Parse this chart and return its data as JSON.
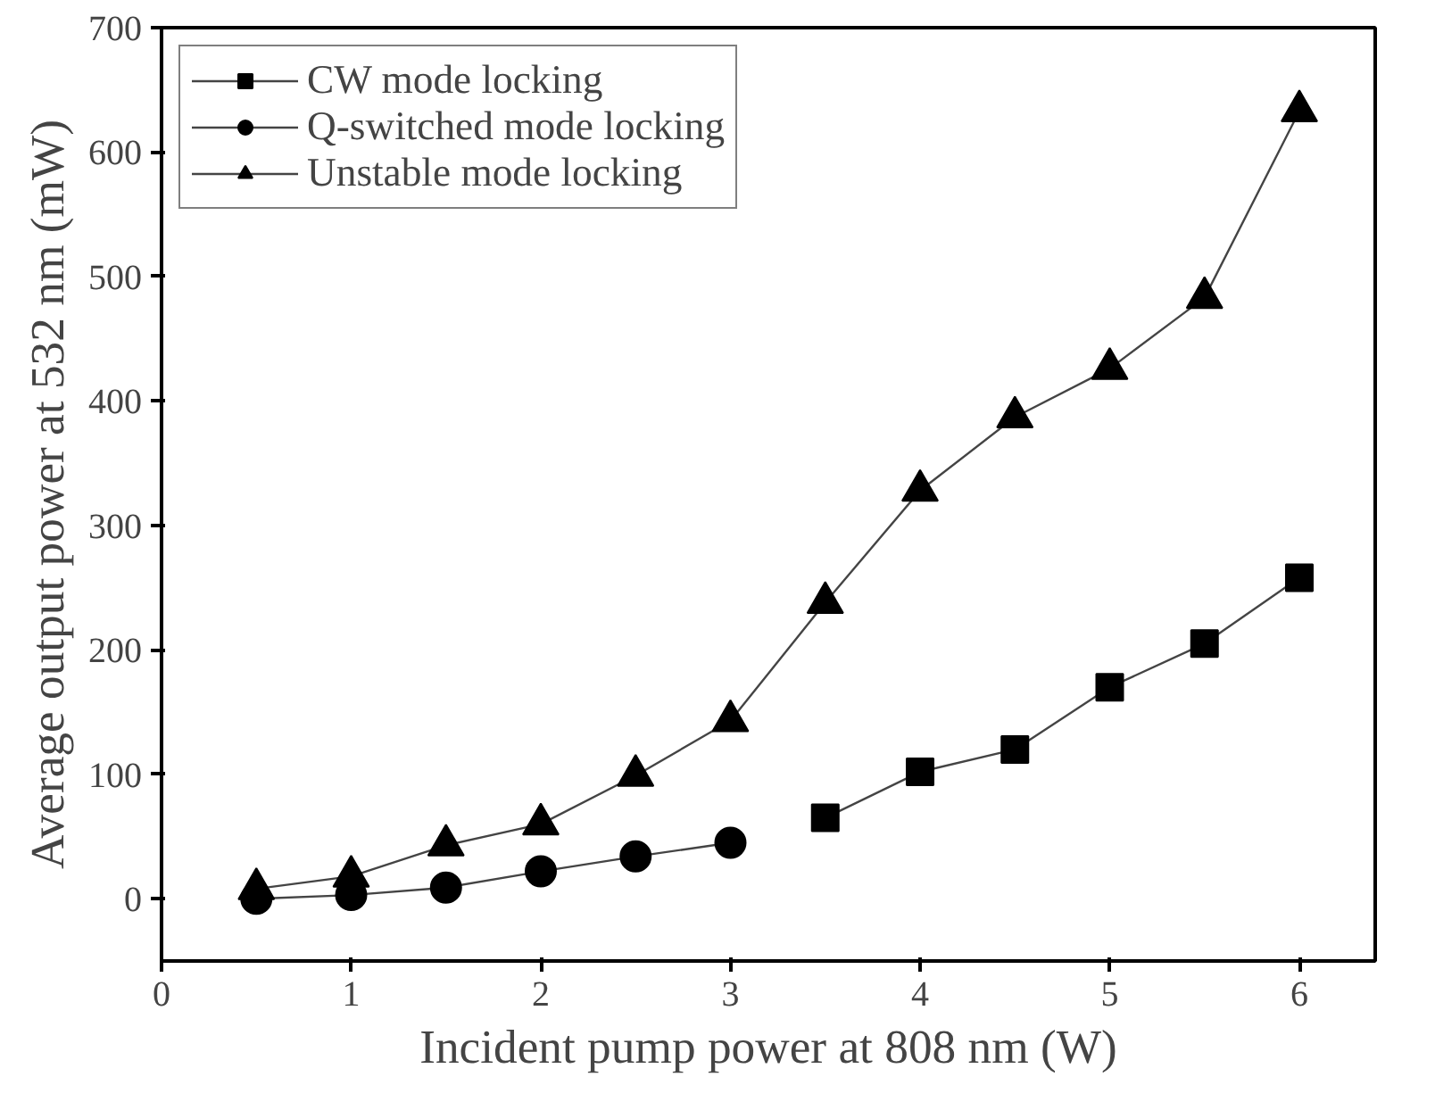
{
  "chart_data": {
    "type": "line",
    "xlabel": "Incident pump power at 808 nm (W)",
    "ylabel": "Average output power at 532 nm (mW)",
    "xlim": [
      0,
      6.4
    ],
    "ylim": [
      -50,
      700
    ],
    "xticks": [
      0,
      1,
      2,
      3,
      4,
      5,
      6
    ],
    "yticks": [
      0,
      100,
      200,
      300,
      400,
      500,
      600,
      700
    ],
    "grid": false,
    "legend": "top left",
    "line_style": "solid",
    "series": [
      {
        "name": "CW mode locking",
        "color": "#000000",
        "marker": "square",
        "x": [
          3.5,
          4,
          4.5,
          5,
          5.5,
          6
        ],
        "values": [
          65,
          102,
          120,
          170,
          205,
          258
        ]
      },
      {
        "name": "Q-switched mode locking",
        "color": "#000000",
        "marker": "circle",
        "x": [
          0.5,
          1,
          1.5,
          2,
          2.5,
          3
        ],
        "values": [
          0,
          3,
          9,
          22,
          34,
          45
        ]
      },
      {
        "name": "Unstable mode locking",
        "color": "#000000",
        "marker": "triangle",
        "x": [
          0.5,
          1,
          1.5,
          2,
          2.5,
          3,
          3.5,
          4,
          4.5,
          5,
          5.5,
          6
        ],
        "values": [
          8,
          18,
          43,
          60,
          99,
          143,
          238,
          328,
          387,
          426,
          483,
          633
        ]
      }
    ]
  }
}
